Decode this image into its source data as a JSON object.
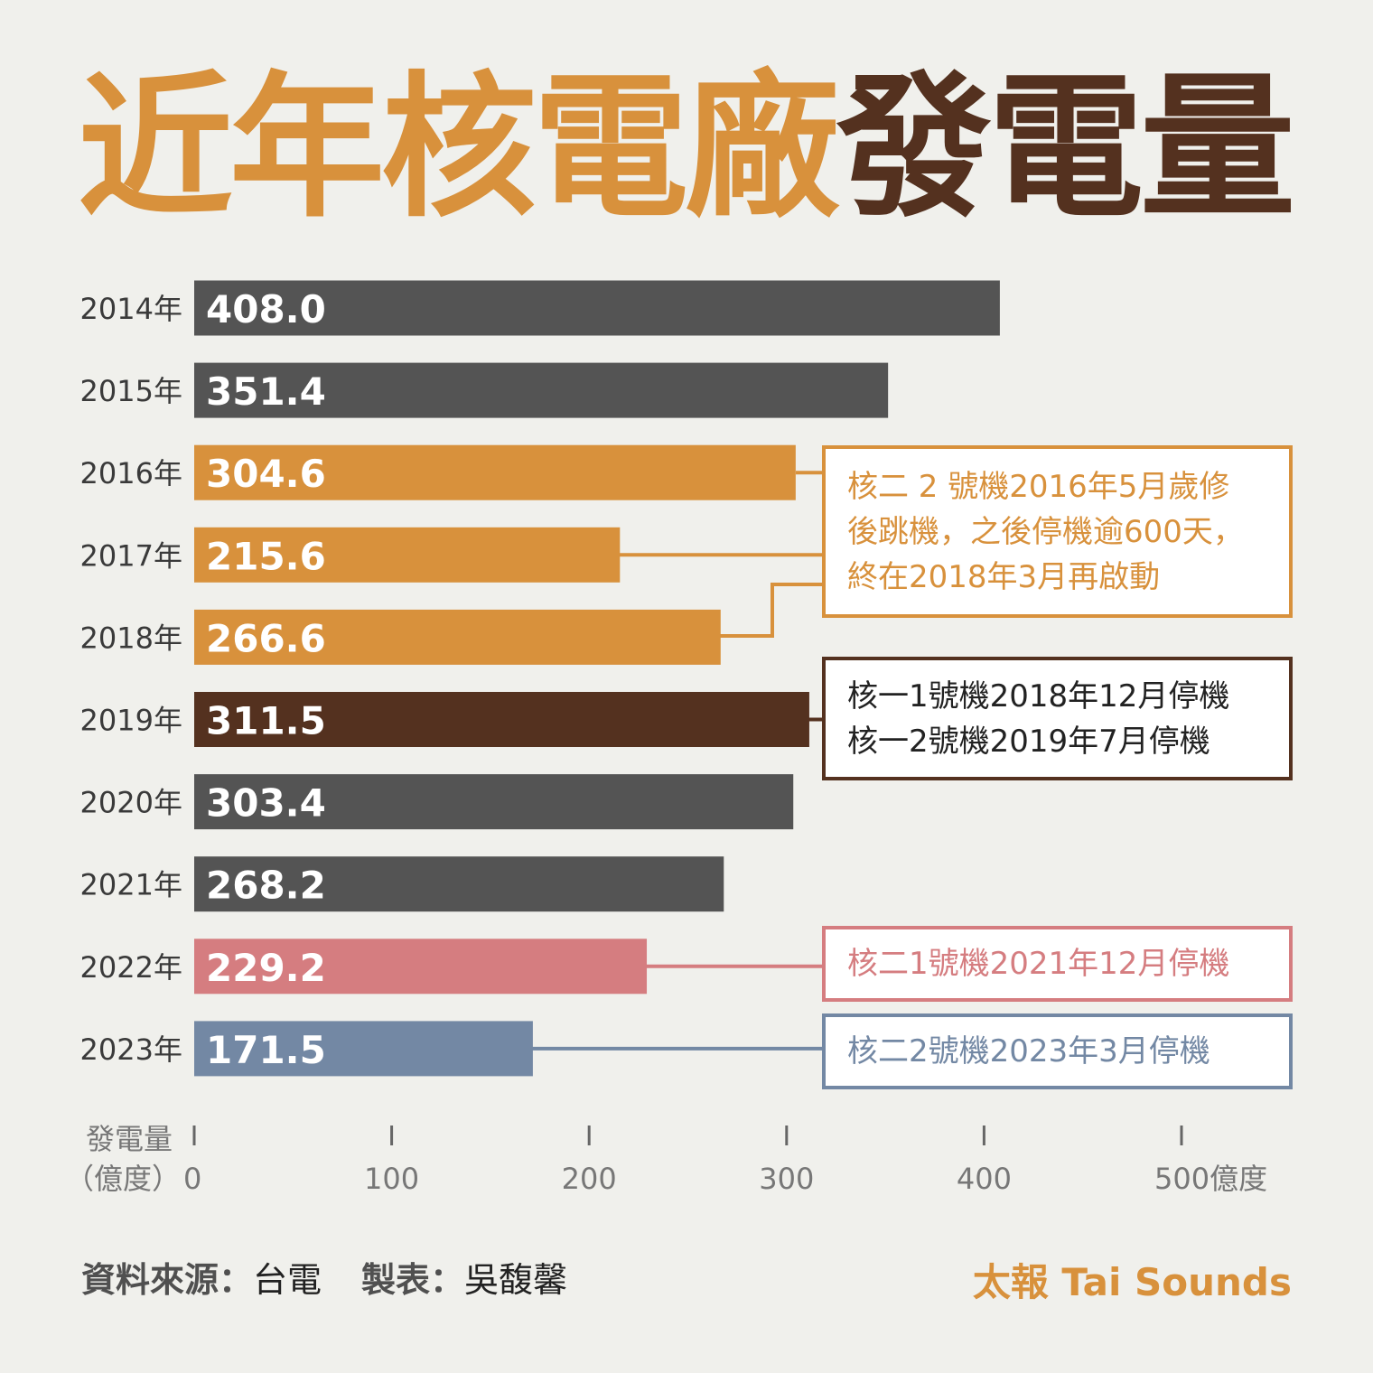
{
  "header": {
    "title_part1": "近年核電廠",
    "title_part2": "發電量"
  },
  "chart_data": {
    "type": "bar",
    "orientation": "horizontal",
    "categories": [
      "2014年",
      "2015年",
      "2016年",
      "2017年",
      "2018年",
      "2019年",
      "2020年",
      "2021年",
      "2022年",
      "2023年"
    ],
    "values": [
      408.0,
      351.4,
      304.6,
      215.6,
      266.6,
      311.5,
      303.4,
      268.2,
      229.2,
      171.5
    ],
    "value_labels": [
      "408.0",
      "351.4",
      "304.6",
      "215.6",
      "266.6",
      "311.5",
      "303.4",
      "268.2",
      "229.2",
      "171.5"
    ],
    "bar_colors": [
      "#545454",
      "#545454",
      "#d8913c",
      "#d8913c",
      "#d8913c",
      "#54311f",
      "#545454",
      "#545454",
      "#d57d80",
      "#7388a4"
    ],
    "xlim": [
      0,
      500
    ],
    "x_ticks": [
      0,
      100,
      200,
      300,
      400,
      500
    ],
    "x_tick_labels": [
      "0",
      "100",
      "200",
      "300",
      "400",
      "500億度"
    ],
    "axis_label_line1": "發電量",
    "axis_label_line2": "（億度）",
    "grid": false,
    "annotations": [
      {
        "lines": [
          "核二 2 號機2016年5月歲修",
          "後跳機，之後停機逾600天，",
          "終在2018年3月再啟動"
        ],
        "color": "#d8913c",
        "text_color": "#d8913c",
        "targets": [
          "2016年",
          "2017年",
          "2018年"
        ]
      },
      {
        "lines": [
          "核一1號機2018年12月停機",
          "核一2號機2019年7月停機"
        ],
        "color": "#54311f",
        "text_color": "#222222",
        "targets": [
          "2019年"
        ]
      },
      {
        "lines": [
          "核二1號機2021年12月停機"
        ],
        "color": "#d57d80",
        "text_color": "#d57d80",
        "targets": [
          "2022年"
        ]
      },
      {
        "lines": [
          "核二2號機2023年3月停機"
        ],
        "color": "#7388a4",
        "text_color": "#7388a4",
        "targets": [
          "2023年"
        ]
      }
    ]
  },
  "footer": {
    "source_label": "資料來源：",
    "source_value": "台電",
    "maker_label": "製表：",
    "maker_value": "吳馥馨",
    "brand": "太報 Tai Sounds"
  }
}
